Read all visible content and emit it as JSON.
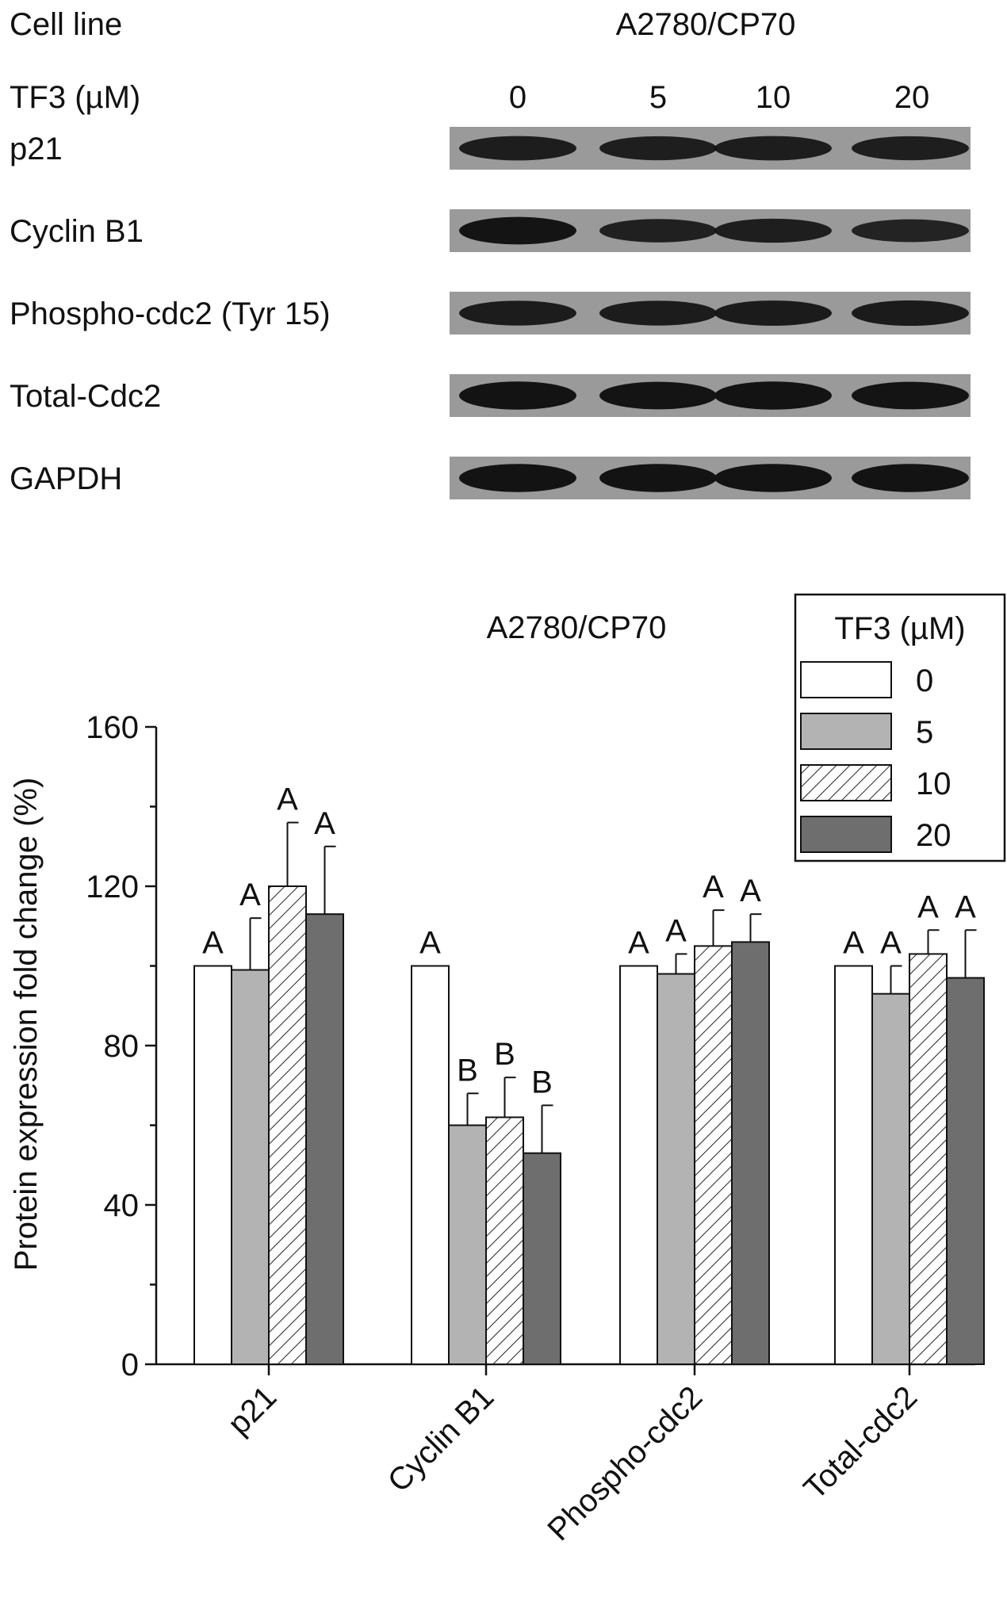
{
  "blot": {
    "cell_line_label": "Cell line",
    "cell_line": "A2780/CP70",
    "treatment_label": "TF3 (µM)",
    "doses": [
      "0",
      "5",
      "10",
      "20"
    ],
    "rows": [
      {
        "label": "p21",
        "intensity": [
          0.8,
          0.78,
          0.8,
          0.78
        ]
      },
      {
        "label": "Cyclin B1",
        "intensity": [
          0.95,
          0.75,
          0.78,
          0.72
        ]
      },
      {
        "label": "Phospho-cdc2 (Tyr 15)",
        "intensity": [
          0.82,
          0.82,
          0.84,
          0.85
        ]
      },
      {
        "label": "Total-Cdc2",
        "intensity": [
          0.98,
          0.95,
          0.98,
          0.95
        ]
      },
      {
        "label": "GAPDH",
        "intensity": [
          0.98,
          0.98,
          0.98,
          0.98
        ]
      }
    ]
  },
  "chart_data": {
    "type": "bar",
    "title": "A2780/CP70",
    "xlabel": "",
    "ylabel": "Protein expression fold change (%)",
    "ylim": [
      0,
      160
    ],
    "yticks": [
      0,
      40,
      80,
      120,
      160
    ],
    "categories": [
      "p21",
      "Cyclin B1",
      "Phospho-cdc2",
      "Total-cdc2"
    ],
    "legend": {
      "title": "TF3 (µM)",
      "position": "top-right"
    },
    "series": [
      {
        "name": "0",
        "fill": "solid",
        "color": "#ffffff",
        "values": [
          100,
          100,
          100,
          100
        ],
        "errors": [
          0,
          0,
          0,
          0
        ],
        "letters": [
          "A",
          "A",
          "A",
          "A"
        ]
      },
      {
        "name": "5",
        "fill": "solid",
        "color": "#b3b3b3",
        "values": [
          99,
          60,
          98,
          93
        ],
        "errors": [
          13,
          8,
          5,
          7
        ],
        "letters": [
          "A",
          "B",
          "A",
          "A"
        ]
      },
      {
        "name": "10",
        "fill": "hatch",
        "color": "#ffffff",
        "values": [
          120,
          62,
          105,
          103
        ],
        "errors": [
          16,
          10,
          9,
          6
        ],
        "letters": [
          "A",
          "B",
          "A",
          "A"
        ]
      },
      {
        "name": "20",
        "fill": "solid",
        "color": "#6e6e6e",
        "values": [
          113,
          53,
          106,
          97
        ],
        "errors": [
          17,
          12,
          7,
          12
        ],
        "letters": [
          "A",
          "B",
          "A",
          "A"
        ]
      }
    ]
  }
}
